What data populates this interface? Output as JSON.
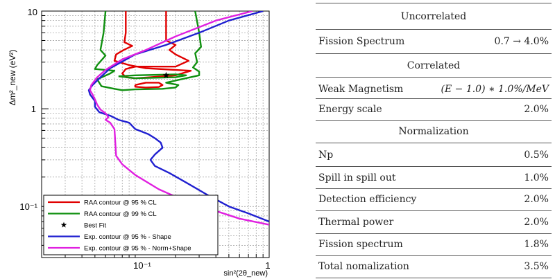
{
  "chart_data": {
    "type": "line",
    "xlabel": "sin²(2θ_new)",
    "ylabel": "Δm²_new (eV²)",
    "xscale": "log",
    "yscale": "log",
    "xlim": [
      0.02,
      1
    ],
    "ylim": [
      0.03,
      10
    ],
    "grid": true,
    "legend_position": "bottom-left",
    "x_tick_labels": [
      "10⁻¹",
      "1"
    ],
    "y_tick_labels": [
      "10⁻¹",
      "1",
      "10"
    ],
    "series": [
      {
        "name": "RAA contour @ 95 % CL",
        "color": "#e00000",
        "segments": [
          [
            [
              0.085,
              10
            ],
            [
              0.085,
              6
            ],
            [
              0.083,
              4.8
            ],
            [
              0.095,
              4.4
            ],
            [
              0.082,
              4.0
            ],
            [
              0.072,
              3.6
            ],
            [
              0.07,
              3.1
            ],
            [
              0.09,
              2.8
            ],
            [
              0.12,
              2.6
            ],
            [
              0.2,
              2.5
            ],
            [
              0.26,
              2.45
            ],
            [
              0.2,
              2.2
            ],
            [
              0.13,
              2.1
            ],
            [
              0.1,
              2.05
            ],
            [
              0.085,
              2.1
            ],
            [
              0.08,
              2.3
            ],
            [
              0.085,
              2.55
            ],
            [
              0.1,
              2.7
            ],
            [
              0.14,
              2.7
            ],
            [
              0.2,
              2.7
            ],
            [
              0.25,
              3.1
            ],
            [
              0.2,
              3.6
            ],
            [
              0.18,
              4.0
            ],
            [
              0.2,
              4.5
            ],
            [
              0.17,
              5.0
            ],
            [
              0.17,
              7
            ],
            [
              0.17,
              10
            ]
          ],
          [
            [
              0.1,
              1.75
            ],
            [
              0.12,
              1.85
            ],
            [
              0.15,
              1.85
            ],
            [
              0.16,
              1.75
            ],
            [
              0.15,
              1.67
            ],
            [
              0.12,
              1.65
            ],
            [
              0.1,
              1.68
            ],
            [
              0.1,
              1.75
            ]
          ]
        ]
      },
      {
        "name": "RAA contour @ 99 % CL",
        "color": "#109010",
        "segments": [
          [
            [
              0.06,
              10
            ],
            [
              0.058,
              6
            ],
            [
              0.055,
              4.0
            ],
            [
              0.06,
              3.5
            ],
            [
              0.052,
              2.8
            ],
            [
              0.05,
              2.55
            ],
            [
              0.07,
              2.45
            ],
            [
              0.065,
              2.3
            ],
            [
              0.052,
              2.0
            ],
            [
              0.056,
              1.7
            ],
            [
              0.07,
              1.6
            ],
            [
              0.08,
              1.55
            ],
            [
              0.1,
              1.58
            ],
            [
              0.16,
              1.6
            ],
            [
              0.2,
              1.65
            ],
            [
              0.21,
              1.75
            ],
            [
              0.17,
              1.85
            ],
            [
              0.22,
              2.0
            ],
            [
              0.3,
              2.2
            ],
            [
              0.3,
              2.4
            ],
            [
              0.27,
              2.65
            ],
            [
              0.29,
              3.0
            ],
            [
              0.28,
              3.7
            ],
            [
              0.31,
              4.3
            ],
            [
              0.3,
              6
            ],
            [
              0.28,
              10
            ]
          ],
          [
            [
              0.075,
              2.15
            ],
            [
              0.1,
              2.2
            ],
            [
              0.2,
              2.25
            ],
            [
              0.24,
              2.2
            ],
            [
              0.2,
              2.1
            ],
            [
              0.1,
              2.05
            ],
            [
              0.075,
              2.15
            ]
          ]
        ]
      },
      {
        "name": "Best Fit",
        "marker": "star",
        "points": [
          [
            0.17,
            2.2
          ]
        ]
      },
      {
        "name": "Exp. contour @ 95 % - Shape",
        "color": "#2020d0",
        "segments": [
          [
            [
              0.9,
              10
            ],
            [
              0.5,
              8
            ],
            [
              0.3,
              6
            ],
            [
              0.17,
              4.5
            ],
            [
              0.1,
              3.6
            ],
            [
              0.065,
              2.6
            ],
            [
              0.055,
              2.1
            ],
            [
              0.048,
              1.75
            ],
            [
              0.045,
              1.55
            ],
            [
              0.046,
              1.4
            ],
            [
              0.05,
              1.2
            ],
            [
              0.05,
              1.05
            ],
            [
              0.054,
              0.92
            ],
            [
              0.065,
              0.85
            ],
            [
              0.075,
              0.77
            ],
            [
              0.09,
              0.72
            ],
            [
              0.1,
              0.62
            ],
            [
              0.125,
              0.55
            ],
            [
              0.14,
              0.5
            ],
            [
              0.155,
              0.45
            ],
            [
              0.16,
              0.4
            ],
            [
              0.14,
              0.34
            ],
            [
              0.13,
              0.3
            ],
            [
              0.14,
              0.26
            ],
            [
              0.18,
              0.22
            ],
            [
              0.25,
              0.17
            ],
            [
              0.35,
              0.13
            ],
            [
              0.5,
              0.1
            ],
            [
              0.7,
              0.085
            ],
            [
              1,
              0.07
            ]
          ]
        ]
      },
      {
        "name": "Exp. contour @ 95 % - Norm+Shape",
        "color": "#e020e0",
        "segments": [
          [
            [
              0.75,
              10
            ],
            [
              0.4,
              8
            ],
            [
              0.2,
              5.5
            ],
            [
              0.12,
              4.0
            ],
            [
              0.08,
              3.2
            ],
            [
              0.06,
              2.5
            ],
            [
              0.052,
              2.1
            ],
            [
              0.047,
              1.75
            ],
            [
              0.046,
              1.55
            ],
            [
              0.048,
              1.4
            ],
            [
              0.05,
              1.25
            ],
            [
              0.052,
              1.1
            ],
            [
              0.055,
              0.98
            ],
            [
              0.06,
              0.9
            ],
            [
              0.063,
              0.82
            ],
            [
              0.06,
              0.77
            ],
            [
              0.065,
              0.72
            ],
            [
              0.07,
              0.62
            ],
            [
              0.071,
              0.45
            ],
            [
              0.072,
              0.33
            ],
            [
              0.08,
              0.27
            ],
            [
              0.1,
              0.21
            ],
            [
              0.15,
              0.15
            ],
            [
              0.25,
              0.11
            ],
            [
              0.4,
              0.09
            ],
            [
              0.6,
              0.075
            ],
            [
              1,
              0.065
            ]
          ]
        ]
      }
    ]
  },
  "table": {
    "section_uncorrelated": "Uncorrelated",
    "fission_spectrum_label": "Fission Spectrum",
    "fission_spectrum_value": "0.7 → 4.0%",
    "section_correlated": "Correlated",
    "weak_magnetism_label": "Weak Magnetism",
    "weak_magnetism_value": "(E − 1.0) ∗ 1.0%/MeV",
    "energy_scale_label": "Energy scale",
    "energy_scale_value": "2.0%",
    "section_normalization": "Normalization",
    "np_label": "Np",
    "np_value": "0.5%",
    "spill_label": "Spill in spill out",
    "spill_value": "1.0%",
    "detection_label": "Detection efficiency",
    "detection_value": "2.0%",
    "thermal_label": "Thermal power",
    "thermal_value": "2.0%",
    "fission_spectrum2_label": "Fission spectrum",
    "fission_spectrum2_value": "1.8%",
    "total_label": "Total nomalization",
    "total_value": "3.5%"
  }
}
